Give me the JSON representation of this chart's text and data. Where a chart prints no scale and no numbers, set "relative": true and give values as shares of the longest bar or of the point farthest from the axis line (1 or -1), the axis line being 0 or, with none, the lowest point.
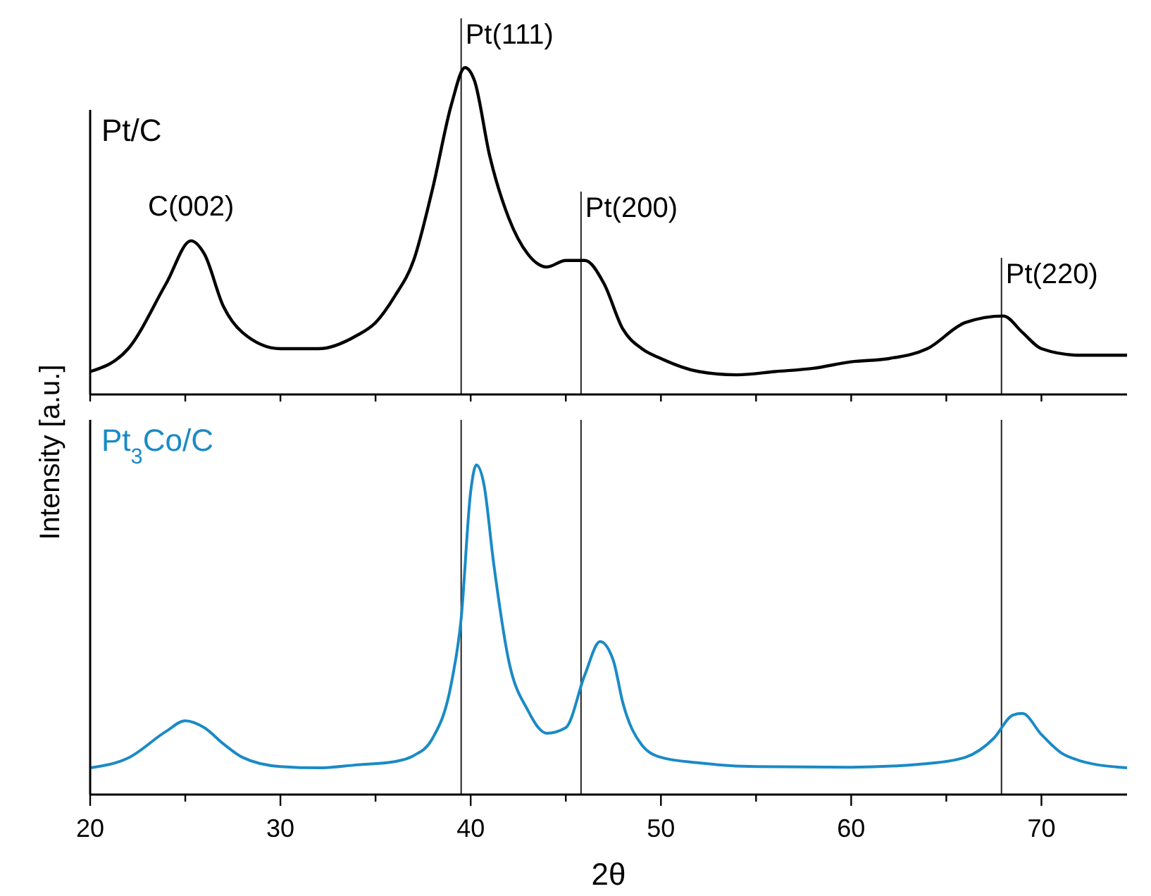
{
  "chart_data": [
    {
      "type": "line",
      "ylabel": "Intensity [a.u.]",
      "relative": true,
      "tick_labels": false,
      "xlim": [
        20,
        74.5
      ],
      "xticks": [
        {
          "value": 20,
          "label": null
        },
        {
          "value": 25,
          "label": null
        },
        {
          "value": 30,
          "label": null
        },
        {
          "value": 35,
          "label": null
        },
        {
          "value": 40,
          "label": null
        },
        {
          "value": 45,
          "label": null
        },
        {
          "value": 50,
          "label": null
        },
        {
          "value": 55,
          "label": null
        },
        {
          "value": 60,
          "label": null
        },
        {
          "value": 65,
          "label": null
        },
        {
          "value": 70,
          "label": null
        }
      ],
      "x": [
        20,
        22,
        24,
        25.3,
        26,
        27,
        28,
        30,
        32,
        34,
        35,
        36,
        37,
        38,
        39,
        39.7,
        40.2,
        41,
        42,
        43,
        44,
        45,
        46,
        47,
        48,
        49,
        50,
        52,
        54,
        56,
        58,
        60,
        62,
        64,
        66,
        68,
        69,
        70,
        72,
        74.5
      ],
      "series": [
        {
          "name": "Pt/C",
          "color": "#000000",
          "values": [
            0.07,
            0.14,
            0.34,
            0.47,
            0.43,
            0.27,
            0.19,
            0.14,
            0.14,
            0.18,
            0.22,
            0.3,
            0.41,
            0.63,
            0.89,
            1,
            0.96,
            0.73,
            0.54,
            0.43,
            0.39,
            0.41,
            0.41,
            0.34,
            0.2,
            0.14,
            0.11,
            0.07,
            0.06,
            0.07,
            0.08,
            0.1,
            0.11,
            0.14,
            0.22,
            0.24,
            0.19,
            0.14,
            0.12,
            0.12
          ]
        }
      ],
      "ref_lines": [
        {
          "axis": "x",
          "value": 39.5,
          "label": "Pt(111)"
        },
        {
          "axis": "x",
          "value": 45.8,
          "label": "Pt(200)"
        },
        {
          "axis": "x",
          "value": 67.9,
          "label": "Pt(220)"
        }
      ],
      "annotations": [
        {
          "text": "C(002)",
          "x": 25.3,
          "y": 0.47
        }
      ]
    },
    {
      "type": "line",
      "xlabel": "2θ",
      "relative": true,
      "tick_labels": "x",
      "xlim": [
        20,
        74.5
      ],
      "xticks": [
        20,
        {
          "value": 25,
          "label": null
        },
        30,
        {
          "value": 35,
          "label": null
        },
        40,
        {
          "value": 45,
          "label": null
        },
        50,
        {
          "value": 55,
          "label": null
        },
        60,
        {
          "value": 65,
          "label": null
        },
        70
      ],
      "x": [
        20,
        22,
        24,
        25,
        26,
        27,
        28,
        30,
        32,
        34,
        36,
        37,
        38,
        39,
        39.5,
        40,
        40.3,
        40.7,
        41.2,
        42,
        43,
        44,
        45,
        46,
        46.8,
        47.5,
        48,
        49,
        50,
        52,
        55,
        60,
        64,
        66,
        67.5,
        68.5,
        69,
        70,
        71,
        72,
        74.5
      ],
      "series": [
        {
          "name": "Pt$_{3}$Co/C",
          "color": "#1a8ac6",
          "values": [
            0.081,
            0.111,
            0.192,
            0.224,
            0.203,
            0.154,
            0.113,
            0.085,
            0.081,
            0.09,
            0.1,
            0.118,
            0.171,
            0.342,
            0.534,
            0.919,
            1,
            0.94,
            0.705,
            0.406,
            0.256,
            0.186,
            0.203,
            0.363,
            0.464,
            0.406,
            0.278,
            0.15,
            0.113,
            0.096,
            0.085,
            0.083,
            0.094,
            0.113,
            0.171,
            0.241,
            0.246,
            0.182,
            0.128,
            0.103,
            0.081
          ]
        }
      ],
      "ref_lines": [
        {
          "axis": "x",
          "value": 39.5
        },
        {
          "axis": "x",
          "value": 45.8
        },
        {
          "axis": "x",
          "value": 67.9
        }
      ]
    }
  ]
}
